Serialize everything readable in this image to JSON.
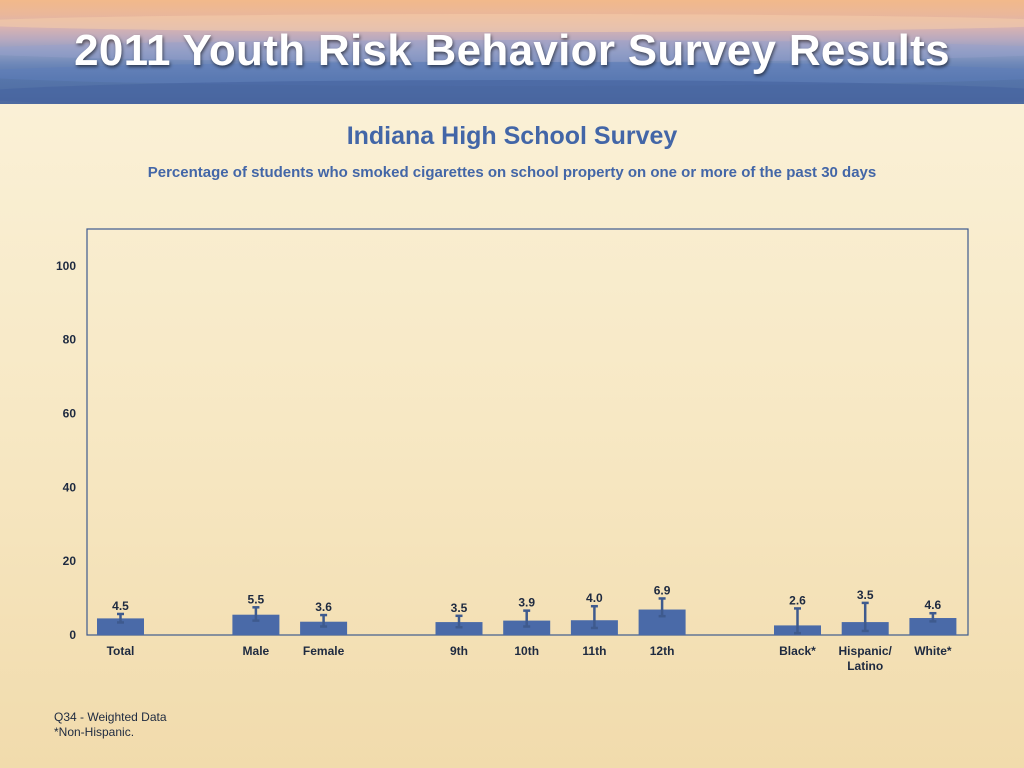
{
  "banner": {
    "title": "2011 Youth Risk Behavior Survey Results"
  },
  "header": {
    "title": "Indiana High School Survey",
    "subtitle": "Percentage of students who smoked cigarettes on school property on one or more of the past 30 days"
  },
  "colors": {
    "bar": "#4a6aa8",
    "axis": "#3e5a8e",
    "error": "#3e5a8e",
    "title": "#4366a7"
  },
  "chart_data": {
    "type": "bar",
    "title": "Indiana High School Survey",
    "subtitle": "Percentage of students who smoked cigarettes on school property on one or more of the past 30 days",
    "xlabel": "",
    "ylabel": "",
    "ylim": [
      0,
      110
    ],
    "yticks": [
      0,
      20,
      40,
      60,
      80,
      100
    ],
    "grid": false,
    "categories": [
      "Total",
      "Male",
      "Female",
      "9th",
      "10th",
      "11th",
      "12th",
      "Black*",
      "Hispanic/\nLatino",
      "White*"
    ],
    "values": [
      4.5,
      5.5,
      3.6,
      3.5,
      3.9,
      4.0,
      6.9,
      2.6,
      3.5,
      4.6
    ],
    "value_labels": [
      "4.5",
      "5.5",
      "3.6",
      "3.5",
      "3.9",
      "4.0",
      "6.9",
      "2.6",
      "3.5",
      "4.6"
    ],
    "error_low": [
      3.4,
      3.9,
      2.3,
      2.1,
      2.3,
      1.9,
      5.1,
      0.5,
      1.1,
      3.7
    ],
    "error_high": [
      5.7,
      7.5,
      5.4,
      5.2,
      6.6,
      7.8,
      9.9,
      7.2,
      8.7,
      5.9
    ],
    "groups": [
      [
        0
      ],
      [
        1,
        2
      ],
      [
        3,
        4,
        5,
        6
      ],
      [
        7,
        8,
        9
      ]
    ]
  },
  "footnotes": {
    "line1": "Q34 - Weighted Data",
    "line2": "*Non-Hispanic."
  }
}
